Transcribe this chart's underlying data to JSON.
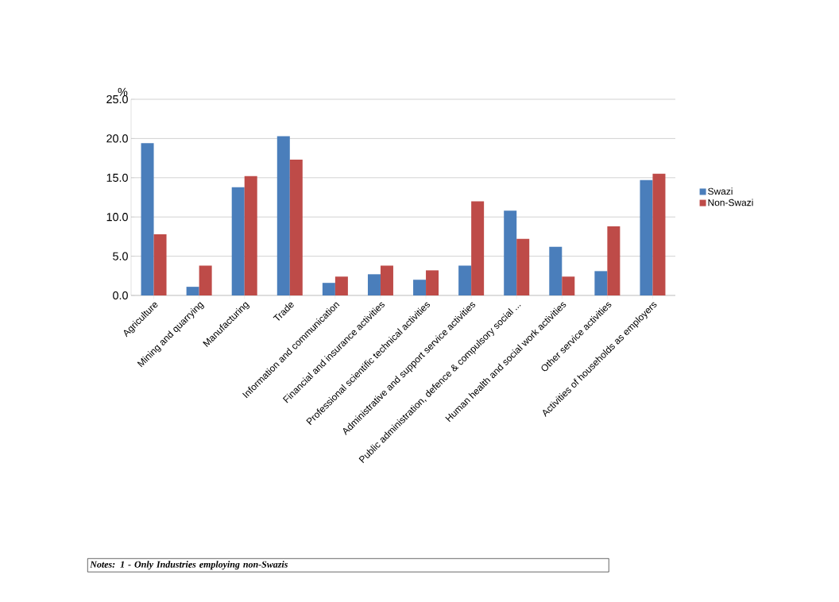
{
  "chart_data": {
    "type": "bar",
    "ylabel": "%",
    "categories": [
      "Agriculture",
      "Mining and quarrying",
      "Manufacturing",
      "Trade",
      "Information and communication",
      "Financial and insurance activities",
      "Professional scientific technical activities",
      "Administrative and support service activities",
      "Public administration, defence & compulsory social ...",
      "Human health and social work activities",
      "Other service activities",
      "Activities of households as employers"
    ],
    "series": [
      {
        "name": "Swazi",
        "color": "#4a7ebb",
        "values": [
          19.4,
          1.1,
          13.8,
          20.3,
          1.6,
          2.7,
          2.0,
          3.8,
          10.8,
          6.2,
          3.1,
          14.7
        ]
      },
      {
        "name": "Non-Swazi",
        "color": "#be4b48",
        "values": [
          7.8,
          3.8,
          15.2,
          17.3,
          2.4,
          3.8,
          3.2,
          12.0,
          7.2,
          2.4,
          8.8,
          15.5
        ]
      }
    ],
    "ylim": [
      0,
      25
    ],
    "yticks": [
      {
        "value": 0,
        "label": "0.0"
      },
      {
        "value": 5,
        "label": "5.0"
      },
      {
        "value": 10,
        "label": "10.0"
      },
      {
        "value": 15,
        "label": "15.0"
      },
      {
        "value": 20,
        "label": "20.0"
      },
      {
        "value": 25,
        "label": "25.0"
      }
    ],
    "grid": "y",
    "legend": "right",
    "annotations": [
      "Notes: 1  - Only Industries employing non-Swazis"
    ]
  }
}
